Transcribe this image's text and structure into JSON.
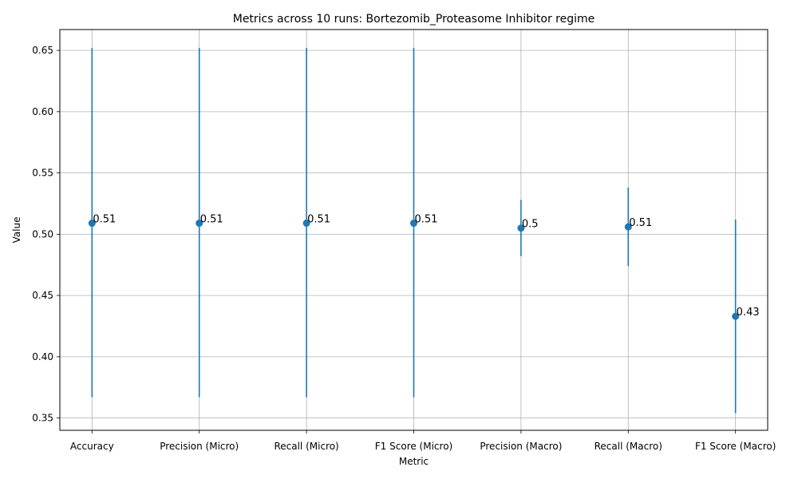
{
  "chart_data": {
    "type": "scatter",
    "title": "Metrics across 10 runs: Bortezomib_Proteasome Inhibitor regime",
    "xlabel": "Metric",
    "ylabel": "Value",
    "categories": [
      "Accuracy",
      "Precision (Micro)",
      "Recall (Micro)",
      "F1 Score (Micro)",
      "Precision (Macro)",
      "Recall (Macro)",
      "F1 Score (Macro)"
    ],
    "series": [
      {
        "values": [
          0.509,
          0.509,
          0.509,
          0.509,
          0.505,
          0.506,
          0.433
        ],
        "error_low": [
          0.367,
          0.367,
          0.367,
          0.367,
          0.482,
          0.474,
          0.354
        ],
        "error_high": [
          0.652,
          0.652,
          0.652,
          0.652,
          0.528,
          0.538,
          0.512
        ],
        "point_labels": [
          "0.51",
          "0.51",
          "0.51",
          "0.51",
          "0.5",
          "0.51",
          "0.43"
        ]
      }
    ],
    "ylim": [
      0.34,
      0.667
    ],
    "yticks": [
      0.35,
      0.4,
      0.45,
      0.5,
      0.55,
      0.6,
      0.65
    ],
    "ytick_labels": [
      "0.35",
      "0.40",
      "0.45",
      "0.50",
      "0.55",
      "0.60",
      "0.65"
    ],
    "grid": true,
    "color": "#1f77b4"
  }
}
